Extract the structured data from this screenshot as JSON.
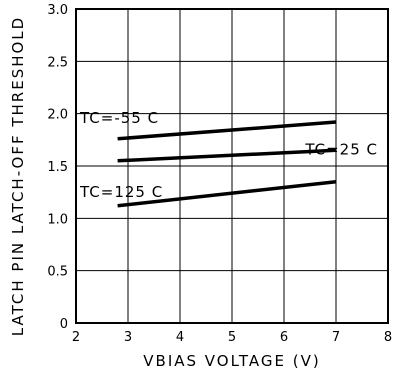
{
  "chart_data": {
    "type": "line",
    "xlabel": "VBIAS VOLTAGE (V)",
    "ylabel": "LATCH PIN LATCH-OFF THRESHOLD",
    "xlim": [
      2,
      8
    ],
    "ylim": [
      0,
      3.0
    ],
    "x_ticks": [
      "2",
      "3",
      "4",
      "5",
      "6",
      "7",
      "8"
    ],
    "y_ticks": [
      "0",
      "0.5",
      "1.0",
      "1.5",
      "2.0",
      "2.5",
      "3.0"
    ],
    "grid": true,
    "series": [
      {
        "name": "TC=-55 C",
        "x": [
          2.8,
          7.0
        ],
        "y": [
          1.76,
          1.92
        ]
      },
      {
        "name": "TC=25 C",
        "x": [
          2.8,
          7.0
        ],
        "y": [
          1.55,
          1.65
        ]
      },
      {
        "name": "TC=125 C",
        "x": [
          2.8,
          7.0
        ],
        "y": [
          1.12,
          1.35
        ]
      }
    ]
  }
}
